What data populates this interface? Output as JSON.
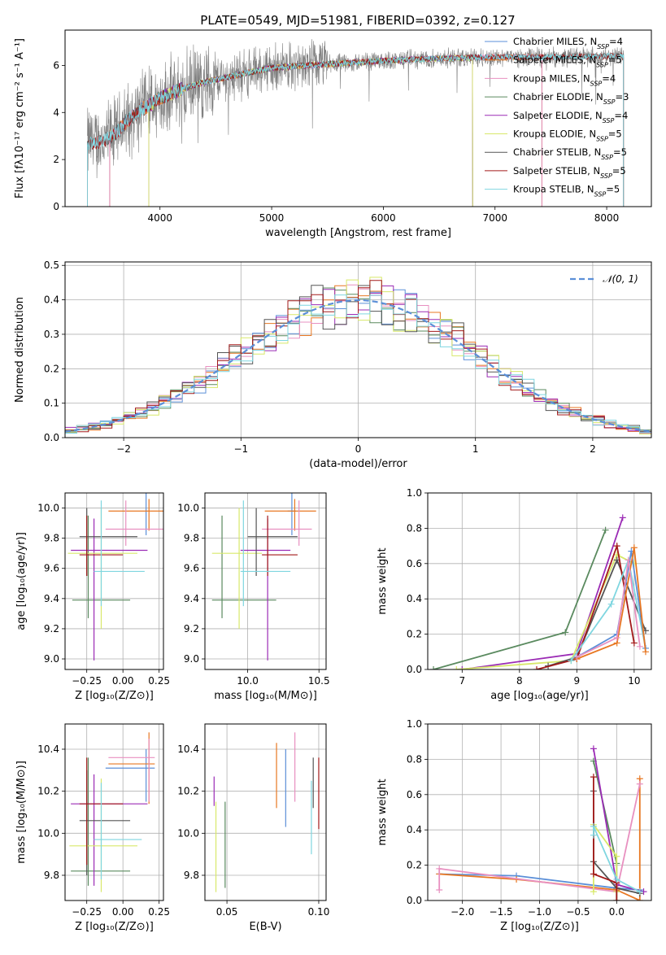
{
  "figure_title": "PLATE=0549, MJD=51981, FIBERID=0392, z=0.127",
  "colors": {
    "Chabrier MILES": "#5b8fd8",
    "Salpeter MILES": "#e87722",
    "Kroupa MILES": "#e890c0",
    "Chabrier ELODIE": "#5a8a5f",
    "Salpeter ELODIE": "#9b2bb5",
    "Kroupa ELODIE": "#d8e86a",
    "Chabrier STELIB": "#555555",
    "Salpeter STELIB": "#a31a1a",
    "Kroupa STELIB": "#7fd6e0",
    "data": "#808080"
  },
  "chart_data": [
    {
      "type": "line",
      "id": "spectrum",
      "xlabel": "wavelength [Angstrom, rest frame]",
      "ylabel": "Flux [fλ10⁻¹⁷ erg cm⁻² s⁻¹ A⁻¹]",
      "xlim": [
        3150,
        8400
      ],
      "ylim": [
        0,
        7.5
      ],
      "xticks": [
        4000,
        5000,
        6000,
        7000,
        8000
      ],
      "yticks": [
        0,
        2,
        4,
        6
      ],
      "legend_position": "top-right",
      "series": [
        {
          "name": "Chabrier MILES, N_SSP=4",
          "start": 3550,
          "end": 7420
        },
        {
          "name": "Salpeter MILES, N_SSP=5",
          "start": 3550,
          "end": 7420
        },
        {
          "name": "Kroupa MILES, N_SSP=4",
          "start": 3550,
          "end": 7420
        },
        {
          "name": "Chabrier ELODIE, N_SSP=3",
          "start": 3900,
          "end": 6800
        },
        {
          "name": "Salpeter ELODIE, N_SSP=4",
          "start": 3900,
          "end": 6800
        },
        {
          "name": "Kroupa ELODIE, N_SSP=5",
          "start": 3900,
          "end": 6800
        },
        {
          "name": "Chabrier STELIB, N_SSP=5",
          "start": 3350,
          "end": 8150
        },
        {
          "name": "Salpeter STELIB, N_SSP=5",
          "start": 3350,
          "end": 8150
        },
        {
          "name": "Kroupa STELIB, N_SSP=5",
          "start": 3350,
          "end": 8150
        }
      ],
      "continuum": {
        "x": [
          3350,
          3500,
          3600,
          3700,
          3800,
          4000,
          4200,
          4400,
          4600,
          4800,
          5000,
          5500,
          6000,
          6500,
          7000,
          7500,
          8000,
          8150
        ],
        "y": [
          2.7,
          2.8,
          3.1,
          3.6,
          4.0,
          4.6,
          5.0,
          5.3,
          5.5,
          5.7,
          5.9,
          6.05,
          6.2,
          6.3,
          6.35,
          6.35,
          6.4,
          6.4
        ]
      }
    },
    {
      "type": "bar",
      "id": "residuals",
      "xlabel": "(data-model)/error",
      "ylabel": "Normed distribution",
      "xlim": [
        -2.5,
        2.5
      ],
      "ylim": [
        0,
        0.51
      ],
      "xticks": [
        -2,
        -1,
        0,
        1,
        2
      ],
      "yticks": [
        0.0,
        0.1,
        0.2,
        0.3,
        0.4,
        0.5
      ],
      "grid": true,
      "legend_position": "top-right",
      "gaussian_label": "𝒩(0, 1)",
      "bin_width": 0.1
    },
    {
      "type": "scatter",
      "id": "age-Z",
      "xlabel": "Z [log₁₀(Z/Z⊙)]",
      "ylabel": "age  [log₁₀(age/yr)]",
      "xlim": [
        -0.4,
        0.28
      ],
      "ylim": [
        8.93,
        10.1
      ],
      "xticks": [
        -0.25,
        0.0,
        0.25
      ],
      "yticks": [
        9.0,
        9.2,
        9.4,
        9.6,
        9.8,
        10.0
      ],
      "points": [
        {
          "s": "Chabrier MILES",
          "x": 0.16,
          "y": 9.98,
          "xr": [
            0.16,
            0.16
          ],
          "yr": [
            9.82,
            10.1
          ]
        },
        {
          "s": "Salpeter MILES",
          "x": 0.18,
          "y": 9.98,
          "xr": [
            -0.1,
            0.3
          ],
          "yr": [
            9.85,
            10.06
          ]
        },
        {
          "s": "Kroupa MILES",
          "x": 0.02,
          "y": 9.86,
          "xr": [
            -0.12,
            0.3
          ],
          "yr": [
            9.75,
            10.05
          ]
        },
        {
          "s": "Chabrier ELODIE",
          "x": -0.24,
          "y": 9.39,
          "xr": [
            -0.35,
            0.05
          ],
          "yr": [
            9.27,
            9.95
          ]
        },
        {
          "s": "Salpeter ELODIE",
          "x": -0.2,
          "y": 9.72,
          "xr": [
            -0.36,
            0.17
          ],
          "yr": [
            8.99,
            9.93
          ]
        },
        {
          "s": "Kroupa ELODIE",
          "x": -0.15,
          "y": 9.7,
          "xr": [
            -0.38,
            0.1
          ],
          "yr": [
            9.2,
            10.0
          ]
        },
        {
          "s": "Chabrier STELIB",
          "x": -0.25,
          "y": 9.81,
          "xr": [
            -0.3,
            0.1
          ],
          "yr": [
            9.55,
            10.0
          ]
        },
        {
          "s": "Salpeter STELIB",
          "x": -0.25,
          "y": 9.69,
          "xr": [
            -0.3,
            0.0
          ],
          "yr": [
            9.55,
            9.95
          ]
        },
        {
          "s": "Kroupa STELIB",
          "x": -0.15,
          "y": 9.58,
          "xr": [
            -0.2,
            0.15
          ],
          "yr": [
            9.35,
            10.05
          ]
        }
      ]
    },
    {
      "type": "scatter",
      "id": "age-mass",
      "xlabel": "mass [log₁₀(M/M⊙)]",
      "ylabel": "",
      "xlim": [
        9.7,
        10.55
      ],
      "ylim": [
        8.93,
        10.1
      ],
      "xticks": [
        10.0,
        10.5
      ],
      "yticks": [
        9.0,
        9.2,
        9.4,
        9.6,
        9.8,
        10.0
      ],
      "points": [
        {
          "s": "Chabrier MILES",
          "x": 10.31,
          "y": 9.98,
          "xr": [
            10.28,
            10.34
          ],
          "yr": [
            9.82,
            10.1
          ]
        },
        {
          "s": "Salpeter MILES",
          "x": 10.33,
          "y": 9.98,
          "xr": [
            10.12,
            10.48
          ],
          "yr": [
            9.85,
            10.06
          ]
        },
        {
          "s": "Kroupa MILES",
          "x": 10.36,
          "y": 9.86,
          "xr": [
            10.1,
            10.45
          ],
          "yr": [
            9.75,
            10.05
          ]
        },
        {
          "s": "Chabrier ELODIE",
          "x": 9.82,
          "y": 9.39,
          "xr": [
            9.75,
            10.2
          ],
          "yr": [
            9.27,
            9.95
          ]
        },
        {
          "s": "Salpeter ELODIE",
          "x": 10.14,
          "y": 9.72,
          "xr": [
            9.95,
            10.3
          ],
          "yr": [
            8.99,
            9.93
          ]
        },
        {
          "s": "Kroupa ELODIE",
          "x": 9.94,
          "y": 9.7,
          "xr": [
            9.75,
            10.1
          ],
          "yr": [
            9.2,
            10.0
          ]
        },
        {
          "s": "Chabrier STELIB",
          "x": 10.06,
          "y": 9.81,
          "xr": [
            10.0,
            10.35
          ],
          "yr": [
            9.55,
            10.0
          ]
        },
        {
          "s": "Salpeter STELIB",
          "x": 10.14,
          "y": 9.69,
          "xr": [
            10.1,
            10.35
          ],
          "yr": [
            9.55,
            9.95
          ]
        },
        {
          "s": "Kroupa STELIB",
          "x": 9.97,
          "y": 9.58,
          "xr": [
            9.95,
            10.3
          ],
          "yr": [
            9.35,
            10.05
          ]
        }
      ]
    },
    {
      "type": "line",
      "id": "massweight-age",
      "xlabel": "age  [log₁₀(age/yr)]",
      "ylabel": "mass weight",
      "xlim": [
        6.4,
        10.3
      ],
      "ylim": [
        0,
        1
      ],
      "xticks": [
        7,
        8,
        9,
        10
      ],
      "yticks": [
        0.0,
        0.2,
        0.4,
        0.6,
        0.8,
        1.0
      ],
      "grid": true,
      "series": [
        {
          "s": "Chabrier ELODIE",
          "x": [
            6.5,
            8.8,
            9.5
          ],
          "y": [
            0.0,
            0.21,
            0.79
          ]
        },
        {
          "s": "Salpeter ELODIE",
          "x": [
            7.0,
            9.0,
            9.8
          ],
          "y": [
            0.0,
            0.09,
            0.86
          ]
        },
        {
          "s": "Kroupa ELODIE",
          "x": [
            6.9,
            8.9,
            9.7,
            10.0
          ],
          "y": [
            0.0,
            0.05,
            0.65,
            0.6
          ]
        },
        {
          "s": "Chabrier STELIB",
          "x": [
            8.5,
            9.0,
            9.7,
            10.2
          ],
          "y": [
            0.02,
            0.07,
            0.62,
            0.22
          ]
        },
        {
          "s": "Salpeter STELIB",
          "x": [
            8.3,
            9.0,
            9.7,
            10.0
          ],
          "y": [
            0.0,
            0.06,
            0.7,
            0.15
          ]
        },
        {
          "s": "Kroupa STELIB",
          "x": [
            8.9,
            9.6,
            9.9,
            10.2
          ],
          "y": [
            0.05,
            0.37,
            0.62,
            0.12
          ]
        },
        {
          "s": "Chabrier MILES",
          "x": [
            9.0,
            9.7,
            9.95,
            10.2
          ],
          "y": [
            0.07,
            0.2,
            0.67,
            0.12
          ]
        },
        {
          "s": "Salpeter MILES",
          "x": [
            9.0,
            9.7,
            10.0,
            10.2
          ],
          "y": [
            0.06,
            0.15,
            0.69,
            0.1
          ]
        },
        {
          "s": "Kroupa MILES",
          "x": [
            9.0,
            9.7,
            9.9,
            10.1
          ],
          "y": [
            0.07,
            0.18,
            0.62,
            0.13
          ]
        }
      ]
    },
    {
      "type": "scatter",
      "id": "mass-Z",
      "xlabel": "Z [log₁₀(Z/Z⊙)]",
      "ylabel": "mass [log₁₀(M/M⊙)]",
      "xlim": [
        -0.4,
        0.28
      ],
      "ylim": [
        9.68,
        10.52
      ],
      "xticks": [
        -0.25,
        0.0,
        0.25
      ],
      "yticks": [
        9.8,
        10.0,
        10.2,
        10.4
      ],
      "points": [
        {
          "s": "Chabrier MILES",
          "x": 0.16,
          "y": 10.31,
          "xr": [
            -0.12,
            0.22
          ],
          "yr": [
            10.15,
            10.4
          ]
        },
        {
          "s": "Salpeter MILES",
          "x": 0.18,
          "y": 10.33,
          "xr": [
            -0.1,
            0.22
          ],
          "yr": [
            10.14,
            10.48
          ]
        },
        {
          "s": "Kroupa MILES",
          "x": 0.18,
          "y": 10.36,
          "xr": [
            -0.1,
            0.22
          ],
          "yr": [
            10.15,
            10.45
          ]
        },
        {
          "s": "Chabrier ELODIE",
          "x": -0.24,
          "y": 9.82,
          "xr": [
            -0.36,
            0.05
          ],
          "yr": [
            9.75,
            10.36
          ]
        },
        {
          "s": "Salpeter ELODIE",
          "x": -0.2,
          "y": 10.14,
          "xr": [
            -0.36,
            0.17
          ],
          "yr": [
            9.75,
            10.28
          ]
        },
        {
          "s": "Kroupa ELODIE",
          "x": -0.15,
          "y": 9.94,
          "xr": [
            -0.37,
            0.1
          ],
          "yr": [
            9.72,
            10.26
          ]
        },
        {
          "s": "Chabrier STELIB",
          "x": -0.25,
          "y": 10.06,
          "xr": [
            -0.3,
            0.05
          ],
          "yr": [
            9.8,
            10.3
          ]
        },
        {
          "s": "Salpeter STELIB",
          "x": -0.25,
          "y": 10.14,
          "xr": [
            -0.3,
            0.0
          ],
          "yr": [
            9.85,
            10.36
          ]
        },
        {
          "s": "Kroupa STELIB",
          "x": -0.15,
          "y": 9.97,
          "xr": [
            -0.2,
            0.13
          ],
          "yr": [
            9.78,
            10.24
          ]
        }
      ]
    },
    {
      "type": "scatter",
      "id": "mass-EBV",
      "xlabel": "E(B-V)",
      "ylabel": "",
      "xlim": [
        0.038,
        0.104
      ],
      "ylim": [
        9.68,
        10.52
      ],
      "xticks": [
        0.05,
        0.1
      ],
      "yticks": [
        9.8,
        10.0,
        10.2,
        10.4
      ],
      "points": [
        {
          "s": "Chabrier MILES",
          "x": 0.082,
          "y": 10.2,
          "yr": [
            10.03,
            10.4
          ]
        },
        {
          "s": "Salpeter MILES",
          "x": 0.077,
          "y": 10.25,
          "yr": [
            10.12,
            10.43
          ]
        },
        {
          "s": "Kroupa MILES",
          "x": 0.087,
          "y": 10.3,
          "yr": [
            10.15,
            10.48
          ]
        },
        {
          "s": "Chabrier ELODIE",
          "x": 0.049,
          "y": 9.95,
          "yr": [
            9.74,
            10.15
          ]
        },
        {
          "s": "Salpeter ELODIE",
          "x": 0.043,
          "y": 10.2,
          "yr": [
            10.13,
            10.27
          ]
        },
        {
          "s": "Kroupa ELODIE",
          "x": 0.044,
          "y": 9.9,
          "yr": [
            9.72,
            10.15
          ]
        },
        {
          "s": "Chabrier STELIB",
          "x": 0.097,
          "y": 10.25,
          "yr": [
            10.12,
            10.36
          ]
        },
        {
          "s": "Salpeter STELIB",
          "x": 0.1,
          "y": 10.2,
          "yr": [
            10.02,
            10.36
          ]
        },
        {
          "s": "Kroupa STELIB",
          "x": 0.096,
          "y": 10.0,
          "yr": [
            9.9,
            10.25
          ]
        }
      ]
    },
    {
      "type": "line",
      "id": "massweight-Z",
      "xlabel": "Z [log₁₀(Z/Z⊙)]",
      "ylabel": "mass weight",
      "xlim": [
        -2.45,
        0.45
      ],
      "ylim": [
        0,
        1
      ],
      "xticks": [
        -2.0,
        -1.5,
        -1.0,
        -0.5,
        0.0
      ],
      "yticks": [
        0.0,
        0.2,
        0.4,
        0.6,
        0.8,
        1.0
      ],
      "grid": true,
      "series": [
        {
          "s": "Chabrier MILES",
          "x": [
            -2.3,
            -1.3,
            0.0,
            0.3
          ],
          "y": [
            0.15,
            0.14,
            0.07,
            0.06
          ]
        },
        {
          "s": "Salpeter MILES",
          "x": [
            -2.3,
            -1.3,
            0.0,
            0.3,
            0.3
          ],
          "y": [
            0.15,
            0.12,
            0.06,
            0.0,
            0.69
          ]
        },
        {
          "s": "Kroupa MILES",
          "x": [
            -2.3,
            -2.3,
            0.0,
            0.3
          ],
          "y": [
            0.06,
            0.18,
            0.05,
            0.66
          ]
        },
        {
          "s": "Chabrier ELODIE",
          "x": [
            -0.3,
            0.0,
            0.0
          ],
          "y": [
            0.79,
            0.21,
            0.0
          ]
        },
        {
          "s": "Salpeter ELODIE",
          "x": [
            -0.3,
            0.0,
            0.35
          ],
          "y": [
            0.86,
            0.09,
            0.05
          ]
        },
        {
          "s": "Kroupa ELODIE",
          "x": [
            -0.3,
            -0.3,
            0.0,
            0.0
          ],
          "y": [
            0.05,
            0.43,
            0.25,
            0.05
          ]
        },
        {
          "s": "Chabrier STELIB",
          "x": [
            -0.3,
            -0.3,
            0.0,
            0.3
          ],
          "y": [
            0.62,
            0.22,
            0.07,
            0.04
          ]
        },
        {
          "s": "Salpeter STELIB",
          "x": [
            -0.3,
            -0.3,
            0.0,
            0.0
          ],
          "y": [
            0.7,
            0.15,
            0.1,
            0.0
          ]
        },
        {
          "s": "Kroupa STELIB",
          "x": [
            -0.3,
            -0.3,
            0.0,
            0.3
          ],
          "y": [
            0.37,
            0.42,
            0.12,
            0.05
          ]
        }
      ]
    }
  ]
}
